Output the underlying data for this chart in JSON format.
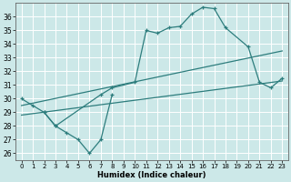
{
  "xlabel": "Humidex (Indice chaleur)",
  "background_color": "#cce8e8",
  "grid_color": "#ffffff",
  "line_color": "#2d7d7d",
  "xlim": [
    -0.5,
    23.5
  ],
  "ylim": [
    25.5,
    37.0
  ],
  "xticks": [
    0,
    1,
    2,
    3,
    4,
    5,
    6,
    7,
    8,
    9,
    10,
    11,
    12,
    13,
    14,
    15,
    16,
    17,
    18,
    19,
    20,
    21,
    22,
    23
  ],
  "yticks": [
    26,
    27,
    28,
    29,
    30,
    31,
    32,
    33,
    34,
    35,
    36
  ],
  "line_upper_jagged_x": [
    0,
    1,
    2,
    3,
    7,
    8,
    10,
    11,
    12,
    13,
    14,
    15,
    16,
    17,
    18,
    20,
    21,
    22,
    23
  ],
  "line_upper_jagged_y": [
    30.0,
    29.5,
    29.0,
    28.0,
    30.3,
    30.8,
    31.2,
    35.0,
    34.8,
    35.2,
    35.3,
    36.2,
    36.7,
    36.6,
    35.2,
    33.8,
    31.2,
    30.8,
    31.5
  ],
  "line_lower_jagged_x": [
    2,
    3,
    4,
    5,
    6,
    7,
    8
  ],
  "line_lower_jagged_y": [
    29.0,
    28.0,
    27.5,
    27.0,
    26.0,
    27.0,
    30.3
  ],
  "trend1_x": [
    0,
    23
  ],
  "trend1_y": [
    29.5,
    33.5
  ],
  "trend2_x": [
    0,
    23
  ],
  "trend2_y": [
    28.8,
    31.3
  ]
}
